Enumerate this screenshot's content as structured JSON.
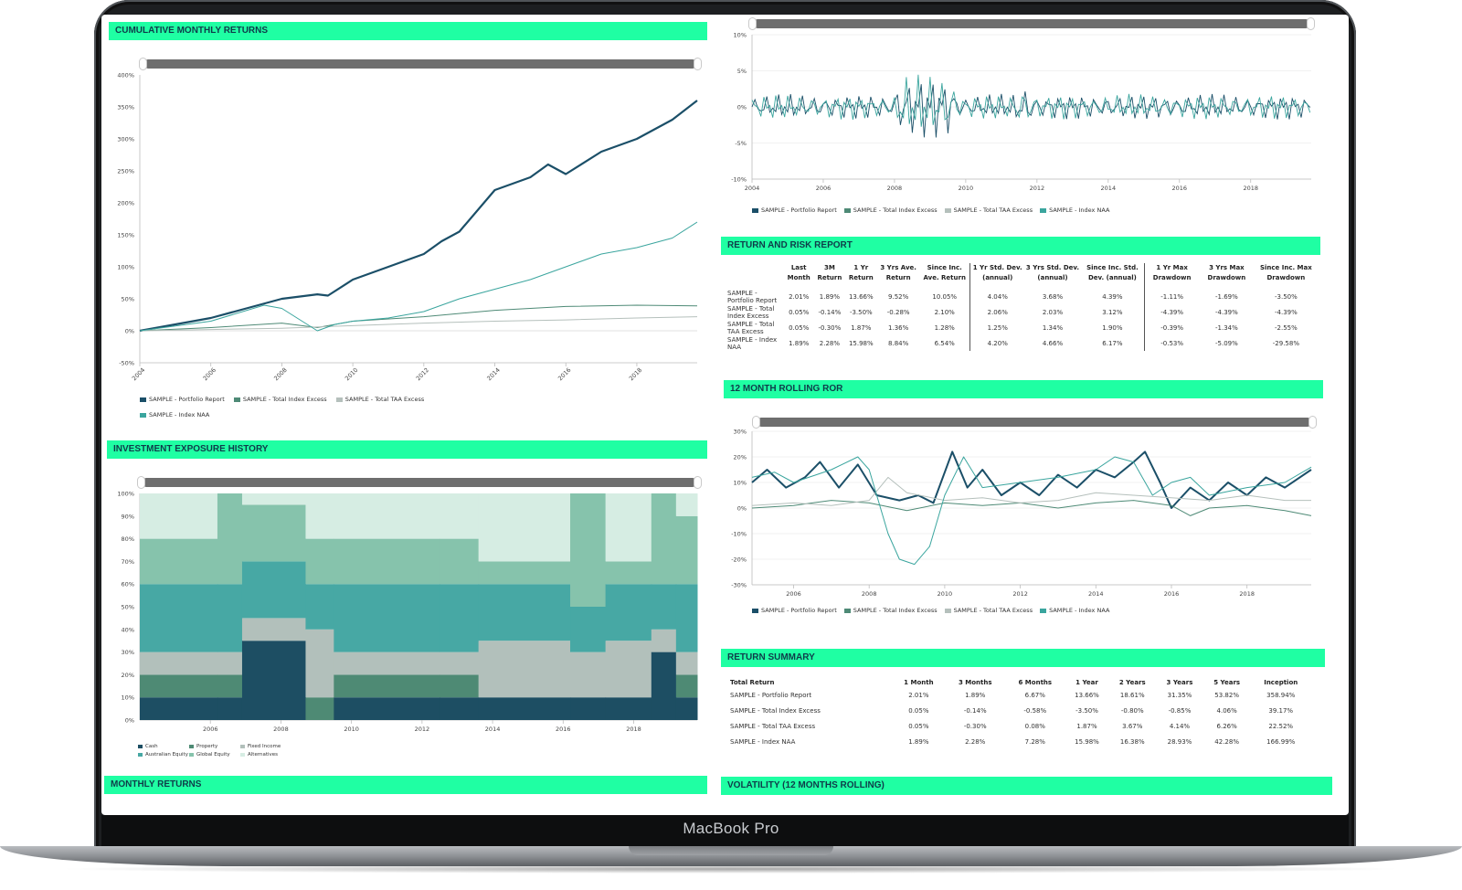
{
  "device": {
    "brand": "MacBook Pro"
  },
  "colors": {
    "band": "#1fffa3",
    "navy": "#1b4f68",
    "teal": "#3aa59e",
    "sage": "#4e8a76",
    "grey": "#b5c0bc"
  },
  "series_names": [
    "SAMPLE - Portfolio Report",
    "SAMPLE - Total Index Excess",
    "SAMPLE - Total TAA Excess",
    "SAMPLE - Index NAA"
  ],
  "sections": {
    "cumulative": "CUMULATIVE MONTHLY RETURNS",
    "exposure": "INVESTMENT EXPOSURE HISTORY",
    "monthly": "MONTHLY RETURNS",
    "risk": "RETURN AND RISK REPORT",
    "rolling": "12 MONTH ROLLING ROR",
    "summary": "RETURN SUMMARY",
    "volatility": "VOLATILITY (12 MONTHS ROLLING)"
  },
  "exposure_legend": [
    "Cash",
    "Property",
    "Fixed Income",
    "Australian Equity",
    "Global Equity",
    "Alternatives"
  ],
  "risk_table": {
    "headers": [
      "",
      "Last Month",
      "3M Return",
      "1 Yr Return",
      "3 Yrs Ave. Return",
      "Since Inc. Ave. Return",
      "1 Yr Std. Dev. (annual)",
      "3 Yrs Std. Dev. (annual)",
      "Since Inc. Std. Dev. (annual)",
      "1 Yr Max Drawdown",
      "3 Yrs Max Drawdown",
      "Since Inc. Max Drawdown"
    ],
    "rows": [
      [
        "SAMPLE - Portfolio Report",
        "2.01%",
        "1.89%",
        "13.66%",
        "9.52%",
        "10.05%",
        "4.04%",
        "3.68%",
        "4.39%",
        "-1.11%",
        "-1.69%",
        "-3.50%"
      ],
      [
        "SAMPLE - Total Index Excess",
        "0.05%",
        "-0.14%",
        "-3.50%",
        "-0.28%",
        "2.10%",
        "2.06%",
        "2.03%",
        "3.12%",
        "-4.39%",
        "-4.39%",
        "-4.39%"
      ],
      [
        "SAMPLE - Total TAA Excess",
        "0.05%",
        "-0.30%",
        "1.87%",
        "1.36%",
        "1.28%",
        "1.25%",
        "1.34%",
        "1.90%",
        "-0.39%",
        "-1.34%",
        "-2.55%"
      ],
      [
        "SAMPLE - Index NAA",
        "1.89%",
        "2.28%",
        "15.98%",
        "8.84%",
        "6.54%",
        "4.20%",
        "4.66%",
        "6.17%",
        "-0.53%",
        "-5.09%",
        "-29.58%"
      ]
    ]
  },
  "summary_table": {
    "headers": [
      "Total Return",
      "1 Month",
      "3 Months",
      "6 Months",
      "1 Year",
      "2 Years",
      "3 Years",
      "5 Years",
      "Inception"
    ],
    "rows": [
      [
        "SAMPLE - Portfolio Report",
        "2.01%",
        "1.89%",
        "6.67%",
        "13.66%",
        "18.61%",
        "31.35%",
        "53.82%",
        "358.94%"
      ],
      [
        "SAMPLE - Total Index Excess",
        "0.05%",
        "-0.14%",
        "-0.58%",
        "-3.50%",
        "-0.80%",
        "-0.85%",
        "4.06%",
        "39.17%"
      ],
      [
        "SAMPLE - Total TAA Excess",
        "0.05%",
        "-0.30%",
        "0.08%",
        "1.87%",
        "3.67%",
        "4.14%",
        "6.26%",
        "22.52%"
      ],
      [
        "SAMPLE - Index NAA",
        "1.89%",
        "2.28%",
        "7.28%",
        "15.98%",
        "16.38%",
        "28.93%",
        "42.28%",
        "166.99%"
      ]
    ]
  },
  "chart_data": [
    {
      "id": "cumulative",
      "type": "line",
      "y_ticks": [
        "400%",
        "350%",
        "300%",
        "250%",
        "200%",
        "150%",
        "100%",
        "50%",
        "0%",
        "-50%"
      ],
      "x_ticks": [
        "2004",
        "2006",
        "2008",
        "2010",
        "2012",
        "2014",
        "2016",
        "2018"
      ],
      "ylim": [
        -50,
        400
      ],
      "xlim": [
        2004,
        2019.7
      ],
      "series": [
        {
          "name": "SAMPLE - Portfolio Report",
          "color": "#1b4f68",
          "width": 2.2,
          "x": [
            2004,
            2005,
            2006,
            2007,
            2008,
            2009,
            2009.3,
            2010,
            2011,
            2012,
            2012.5,
            2013,
            2014,
            2015,
            2015.5,
            2016,
            2017,
            2018,
            2019,
            2019.7
          ],
          "y": [
            0,
            10,
            20,
            35,
            50,
            57,
            55,
            80,
            100,
            120,
            140,
            155,
            220,
            240,
            260,
            245,
            280,
            300,
            330,
            360
          ]
        },
        {
          "name": "SAMPLE - Total Index Excess",
          "color": "#4e8a76",
          "width": 1,
          "x": [
            2004,
            2006,
            2008,
            2009,
            2010,
            2012,
            2014,
            2016,
            2018,
            2019.7
          ],
          "y": [
            0,
            5,
            12,
            5,
            15,
            22,
            32,
            38,
            40,
            39
          ]
        },
        {
          "name": "SAMPLE - Total TAA Excess",
          "color": "#b5c0bc",
          "width": 1,
          "x": [
            2004,
            2006,
            2008,
            2010,
            2012,
            2014,
            2016,
            2018,
            2019.7
          ],
          "y": [
            0,
            2,
            4,
            8,
            12,
            15,
            17,
            20,
            22
          ]
        },
        {
          "name": "SAMPLE - Index NAA",
          "color": "#3aa59e",
          "width": 1,
          "x": [
            2004,
            2006,
            2007.5,
            2008,
            2009,
            2009.5,
            2010,
            2011,
            2012,
            2013,
            2014,
            2015,
            2016,
            2017,
            2018,
            2019,
            2019.7
          ],
          "y": [
            0,
            15,
            40,
            35,
            0,
            10,
            15,
            20,
            30,
            50,
            65,
            80,
            100,
            120,
            130,
            145,
            170
          ]
        }
      ]
    },
    {
      "id": "monthly",
      "type": "line",
      "y_ticks": [
        "10%",
        "5%",
        "0%",
        "-5%",
        "-10%"
      ],
      "x_ticks": [
        "2004",
        "2006",
        "2008",
        "2010",
        "2012",
        "2014",
        "2016",
        "2018"
      ],
      "ylim": [
        -10,
        10
      ],
      "xlim": [
        2004,
        2019.7
      ]
    },
    {
      "id": "rolling",
      "type": "line",
      "y_ticks": [
        "30%",
        "20%",
        "10%",
        "0%",
        "-10%",
        "-20%",
        "-30%"
      ],
      "x_ticks": [
        "2006",
        "2008",
        "2010",
        "2012",
        "2014",
        "2016",
        "2018"
      ],
      "ylim": [
        -30,
        30
      ],
      "xlim": [
        2004.9,
        2019.7
      ],
      "series": [
        {
          "name": "SAMPLE - Portfolio Report",
          "color": "#1b4f68",
          "width": 2,
          "x": [
            2004.9,
            2005.3,
            2005.8,
            2006.3,
            2006.7,
            2007.2,
            2007.7,
            2008.2,
            2008.8,
            2009.3,
            2009.7,
            2010.2,
            2010.6,
            2011,
            2011.5,
            2012,
            2012.5,
            2013,
            2013.5,
            2014,
            2014.5,
            2015,
            2015.3,
            2015.7,
            2016,
            2016.5,
            2017,
            2017.5,
            2018,
            2018.5,
            2019,
            2019.7
          ],
          "y": [
            10,
            15,
            8,
            12,
            18,
            8,
            17,
            5,
            3,
            5,
            2,
            22,
            8,
            15,
            5,
            10,
            5,
            13,
            8,
            15,
            12,
            18,
            22,
            10,
            0,
            8,
            3,
            10,
            5,
            12,
            8,
            15
          ]
        },
        {
          "name": "SAMPLE - Total Index Excess",
          "color": "#4e8a76",
          "width": 1,
          "x": [
            2004.9,
            2006,
            2007,
            2008,
            2009,
            2010,
            2011,
            2012,
            2013,
            2014,
            2015,
            2016,
            2016.5,
            2017,
            2018,
            2019,
            2019.7
          ],
          "y": [
            0,
            1,
            3,
            2,
            -1,
            2,
            1,
            2,
            0,
            2,
            3,
            1,
            -3,
            0,
            1,
            -1,
            -3
          ]
        },
        {
          "name": "SAMPLE - Total TAA Excess",
          "color": "#b5c0bc",
          "width": 1,
          "x": [
            2004.9,
            2006,
            2007,
            2008,
            2008.5,
            2009,
            2010,
            2011,
            2012,
            2013,
            2014,
            2015,
            2016,
            2017,
            2018,
            2019,
            2019.7
          ],
          "y": [
            1,
            2,
            1,
            3,
            12,
            6,
            3,
            4,
            2,
            3,
            6,
            5,
            4,
            3,
            5,
            3,
            3
          ]
        },
        {
          "name": "SAMPLE - Index NAA",
          "color": "#3aa59e",
          "width": 1,
          "x": [
            2004.9,
            2005.5,
            2006,
            2007,
            2007.7,
            2008,
            2008.5,
            2008.8,
            2009.2,
            2009.6,
            2010,
            2010.5,
            2011,
            2012,
            2013,
            2014,
            2014.5,
            2015,
            2015.5,
            2016,
            2016.5,
            2017,
            2018,
            2019,
            2019.7
          ],
          "y": [
            12,
            14,
            10,
            15,
            20,
            15,
            -10,
            -20,
            -22,
            -15,
            5,
            20,
            8,
            10,
            12,
            15,
            20,
            18,
            5,
            10,
            12,
            5,
            8,
            10,
            16
          ]
        }
      ]
    },
    {
      "id": "exposure",
      "type": "area",
      "y_ticks": [
        "100%",
        "90%",
        "80%",
        "70%",
        "60%",
        "50%",
        "40%",
        "30%",
        "20%",
        "10%",
        "0%"
      ],
      "x_ticks": [
        "2006",
        "2008",
        "2010",
        "2012",
        "2014",
        "2016",
        "2018"
      ],
      "ylim": [
        0,
        100
      ],
      "xlim": [
        2004,
        2019.8
      ]
    }
  ]
}
